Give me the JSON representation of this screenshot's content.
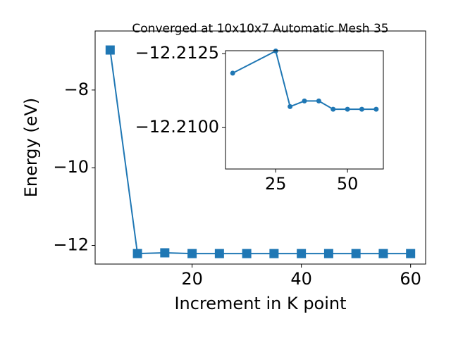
{
  "chart_data": [
    {
      "type": "line",
      "title": "Converged at 10x10x7 Automatic Mesh 35",
      "x_label": "Increment in K point",
      "y_label": "Energy (eV)",
      "x": [
        5,
        10,
        15,
        20,
        25,
        30,
        35,
        40,
        45,
        50,
        55,
        60
      ],
      "series": [
        {
          "color": "#1f77b4",
          "marker": "square",
          "values": [
            -6.97,
            -12.21,
            -12.19,
            -12.21,
            -12.21,
            -12.21,
            -12.21,
            -12.21,
            -12.21,
            -12.21,
            -12.21,
            -12.21
          ]
        }
      ],
      "xlim": [
        2.25,
        62.75
      ],
      "ylim": [
        -12.48,
        -6.48
      ],
      "xticks": [
        20,
        40,
        60
      ],
      "yticks": [
        {
          "value": -12,
          "label": "−12"
        },
        {
          "value": -10,
          "label": "−10"
        },
        {
          "value": -8,
          "label": "−8"
        }
      ]
    },
    {
      "type": "line",
      "x": [
        10,
        25,
        30,
        35,
        40,
        45,
        50,
        55,
        60
      ],
      "series": [
        {
          "color": "#1f77b4",
          "marker": "circle",
          "values": [
            -12.21184,
            -12.21259,
            -12.21071,
            -12.2109,
            -12.2109,
            -12.21062,
            -12.21062,
            -12.21062,
            -12.21062
          ]
        }
      ],
      "xlim": [
        7.5,
        62.5
      ],
      "ylim": [
        -12.2086,
        -12.2126
      ],
      "xticks": [
        25,
        50
      ],
      "yticks": [
        {
          "value": -12.2125,
          "label": "−12.2125"
        },
        {
          "value": -12.21,
          "label": "−12.2100"
        }
      ]
    }
  ]
}
